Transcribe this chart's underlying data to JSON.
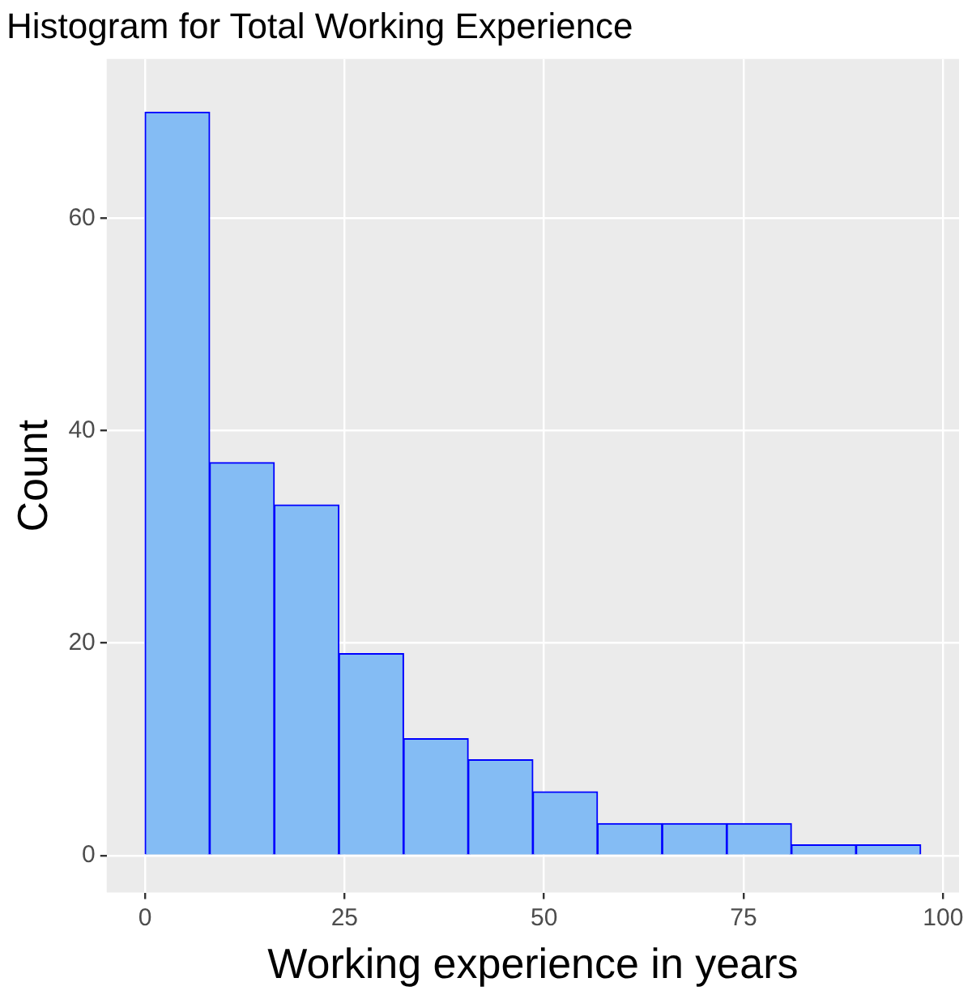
{
  "chart_data": {
    "type": "histogram",
    "title": "Histogram for Total Working Experience",
    "xlabel": "Working experience in years",
    "ylabel": "Count",
    "bins": [
      0,
      8.1,
      16.2,
      24.3,
      32.4,
      40.5,
      48.6,
      56.7,
      64.8,
      72.9,
      81,
      89.1,
      97.2
    ],
    "values": [
      70,
      37,
      33,
      19,
      11,
      9,
      6,
      3,
      3,
      3,
      1,
      1
    ],
    "color": "#84bcf4",
    "xlim": [
      -4.8,
      102
    ],
    "ylim": [
      -3.5,
      75
    ],
    "xticks": [
      0,
      25,
      50,
      75,
      100
    ],
    "yticks": [
      0,
      20,
      40,
      60
    ],
    "grid": true
  }
}
